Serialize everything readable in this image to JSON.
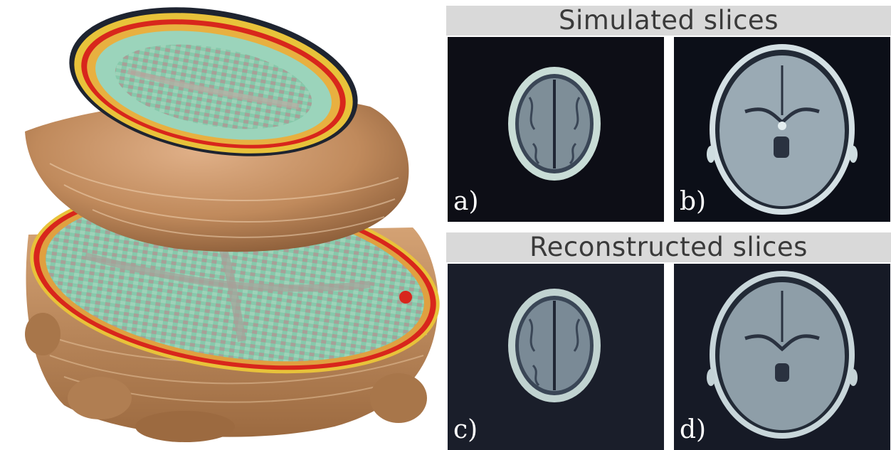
{
  "sections": {
    "simulated_title": "Simulated slices",
    "reconstructed_title": "Reconstructed slices"
  },
  "panels": {
    "a": {
      "label": "a)"
    },
    "b": {
      "label": "b)"
    },
    "c": {
      "label": "c)"
    },
    "d": {
      "label": "d)"
    }
  },
  "colors": {
    "header_background": "#d9d9d9",
    "header_text": "#3a3a3a",
    "panel_background": "#10121e",
    "skin_surface": "#c8956a",
    "tissue_green": "#7ec8a8",
    "edge_red": "#d8261c",
    "edge_yellow": "#e8c23a"
  }
}
